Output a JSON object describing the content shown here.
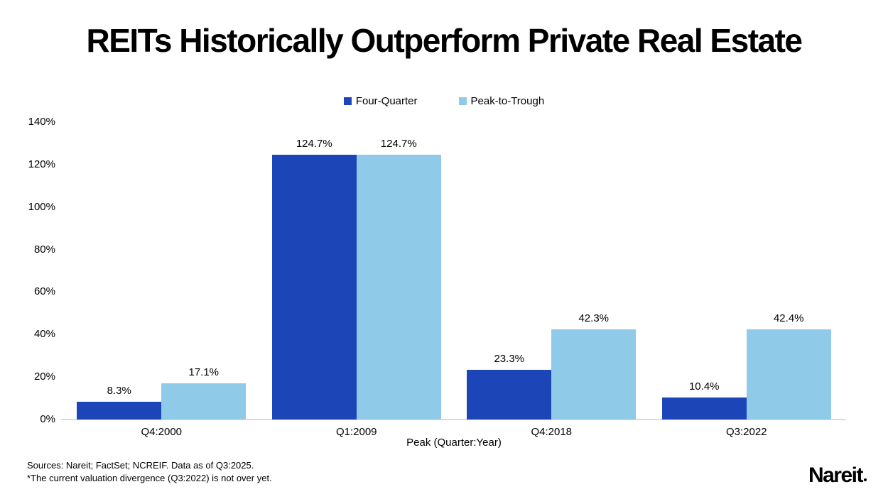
{
  "title": "REITs Historically Outperform Private Real Estate",
  "legend": [
    {
      "label": "Four-Quarter",
      "color": "#1C46B8"
    },
    {
      "label": "Peak-to-Trough",
      "color": "#8FCBE9"
    }
  ],
  "chart_data": {
    "type": "bar",
    "categories": [
      "Q4:2000",
      "Q1:2009",
      "Q4:2018",
      "Q3:2022"
    ],
    "series": [
      {
        "name": "Four-Quarter",
        "color": "#1C46B8",
        "values": [
          8.3,
          124.7,
          23.3,
          10.4
        ],
        "labels": [
          "8.3%",
          "124.7%",
          "23.3%",
          "10.4%"
        ]
      },
      {
        "name": "Peak-to-Trough",
        "color": "#8FCBE9",
        "values": [
          17.1,
          124.7,
          42.3,
          42.4
        ],
        "labels": [
          "17.1%",
          "124.7%",
          "42.3%",
          "42.4%"
        ]
      }
    ],
    "title": "REITs Historically Outperform Private Real Estate",
    "xlabel": "Peak (Quarter:Year)",
    "ylabel": "",
    "ylim": [
      0,
      140
    ],
    "yticks": [
      "0%",
      "20%",
      "40%",
      "60%",
      "80%",
      "100%",
      "120%",
      "140%"
    ],
    "grid": false,
    "legend_position": "top-center",
    "axis_line_color": "#D9D9D9"
  },
  "footer": {
    "sources_line1": "Sources: Nareit; FactSet; NCREIF. Data as of Q3:2025.",
    "sources_line2": "*The current valuation divergence (Q3:2022) is not over yet.",
    "logo_text": "Nareit"
  }
}
